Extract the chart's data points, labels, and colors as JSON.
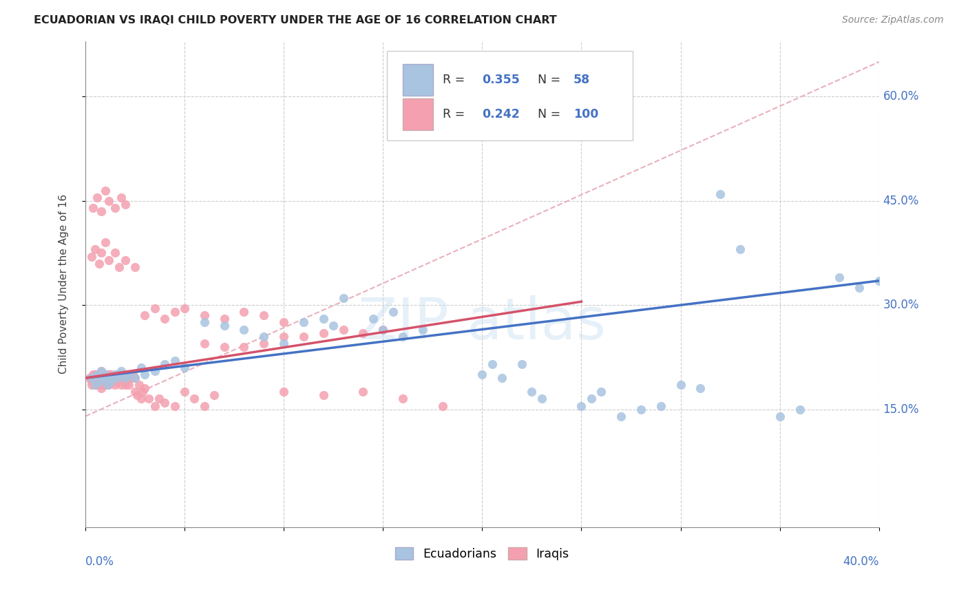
{
  "title": "ECUADORIAN VS IRAQI CHILD POVERTY UNDER THE AGE OF 16 CORRELATION CHART",
  "source": "Source: ZipAtlas.com",
  "ylabel": "Child Poverty Under the Age of 16",
  "yticks": [
    "15.0%",
    "30.0%",
    "45.0%",
    "60.0%"
  ],
  "ytick_vals": [
    0.15,
    0.3,
    0.45,
    0.6
  ],
  "xlim": [
    0.0,
    0.4
  ],
  "ylim": [
    -0.02,
    0.68
  ],
  "ecu_color": "#a8c4e0",
  "irq_color": "#f4a0b0",
  "ecu_line_color": "#4472c4",
  "irq_line_color": "#d4526a",
  "ecu_scatter": [
    [
      0.003,
      0.195
    ],
    [
      0.005,
      0.185
    ],
    [
      0.006,
      0.2
    ],
    [
      0.007,
      0.19
    ],
    [
      0.008,
      0.205
    ],
    [
      0.009,
      0.195
    ],
    [
      0.01,
      0.2
    ],
    [
      0.011,
      0.185
    ],
    [
      0.012,
      0.195
    ],
    [
      0.013,
      0.19
    ],
    [
      0.015,
      0.2
    ],
    [
      0.016,
      0.195
    ],
    [
      0.017,
      0.2
    ],
    [
      0.018,
      0.205
    ],
    [
      0.02,
      0.195
    ],
    [
      0.022,
      0.2
    ],
    [
      0.025,
      0.195
    ],
    [
      0.028,
      0.21
    ],
    [
      0.03,
      0.2
    ],
    [
      0.035,
      0.205
    ],
    [
      0.04,
      0.215
    ],
    [
      0.045,
      0.22
    ],
    [
      0.05,
      0.21
    ],
    [
      0.06,
      0.275
    ],
    [
      0.07,
      0.27
    ],
    [
      0.08,
      0.265
    ],
    [
      0.09,
      0.255
    ],
    [
      0.1,
      0.245
    ],
    [
      0.11,
      0.275
    ],
    [
      0.12,
      0.28
    ],
    [
      0.125,
      0.27
    ],
    [
      0.13,
      0.31
    ],
    [
      0.145,
      0.28
    ],
    [
      0.15,
      0.265
    ],
    [
      0.155,
      0.29
    ],
    [
      0.16,
      0.255
    ],
    [
      0.17,
      0.265
    ],
    [
      0.2,
      0.2
    ],
    [
      0.205,
      0.215
    ],
    [
      0.21,
      0.195
    ],
    [
      0.22,
      0.215
    ],
    [
      0.225,
      0.175
    ],
    [
      0.23,
      0.165
    ],
    [
      0.25,
      0.155
    ],
    [
      0.255,
      0.165
    ],
    [
      0.26,
      0.175
    ],
    [
      0.27,
      0.14
    ],
    [
      0.28,
      0.15
    ],
    [
      0.29,
      0.155
    ],
    [
      0.3,
      0.185
    ],
    [
      0.31,
      0.18
    ],
    [
      0.32,
      0.46
    ],
    [
      0.33,
      0.38
    ],
    [
      0.35,
      0.14
    ],
    [
      0.36,
      0.15
    ],
    [
      0.38,
      0.34
    ],
    [
      0.39,
      0.325
    ],
    [
      0.4,
      0.335
    ]
  ],
  "irq_scatter": [
    [
      0.002,
      0.195
    ],
    [
      0.003,
      0.19
    ],
    [
      0.003,
      0.185
    ],
    [
      0.004,
      0.195
    ],
    [
      0.004,
      0.2
    ],
    [
      0.005,
      0.195
    ],
    [
      0.005,
      0.19
    ],
    [
      0.005,
      0.185
    ],
    [
      0.005,
      0.2
    ],
    [
      0.006,
      0.195
    ],
    [
      0.006,
      0.19
    ],
    [
      0.006,
      0.185
    ],
    [
      0.006,
      0.2
    ],
    [
      0.007,
      0.195
    ],
    [
      0.007,
      0.19
    ],
    [
      0.007,
      0.185
    ],
    [
      0.007,
      0.2
    ],
    [
      0.008,
      0.195
    ],
    [
      0.008,
      0.205
    ],
    [
      0.008,
      0.18
    ],
    [
      0.009,
      0.19
    ],
    [
      0.009,
      0.195
    ],
    [
      0.009,
      0.185
    ],
    [
      0.01,
      0.2
    ],
    [
      0.01,
      0.195
    ],
    [
      0.01,
      0.185
    ],
    [
      0.011,
      0.19
    ],
    [
      0.011,
      0.195
    ],
    [
      0.012,
      0.2
    ],
    [
      0.012,
      0.185
    ],
    [
      0.013,
      0.195
    ],
    [
      0.013,
      0.2
    ],
    [
      0.014,
      0.195
    ],
    [
      0.014,
      0.19
    ],
    [
      0.015,
      0.195
    ],
    [
      0.015,
      0.185
    ],
    [
      0.016,
      0.2
    ],
    [
      0.016,
      0.19
    ],
    [
      0.017,
      0.195
    ],
    [
      0.018,
      0.2
    ],
    [
      0.018,
      0.185
    ],
    [
      0.019,
      0.195
    ],
    [
      0.02,
      0.2
    ],
    [
      0.02,
      0.185
    ],
    [
      0.021,
      0.195
    ],
    [
      0.022,
      0.2
    ],
    [
      0.022,
      0.185
    ],
    [
      0.023,
      0.195
    ],
    [
      0.024,
      0.2
    ],
    [
      0.025,
      0.195
    ],
    [
      0.025,
      0.175
    ],
    [
      0.026,
      0.17
    ],
    [
      0.027,
      0.185
    ],
    [
      0.028,
      0.165
    ],
    [
      0.029,
      0.175
    ],
    [
      0.03,
      0.18
    ],
    [
      0.032,
      0.165
    ],
    [
      0.035,
      0.155
    ],
    [
      0.037,
      0.165
    ],
    [
      0.04,
      0.16
    ],
    [
      0.045,
      0.155
    ],
    [
      0.05,
      0.175
    ],
    [
      0.055,
      0.165
    ],
    [
      0.06,
      0.155
    ],
    [
      0.065,
      0.17
    ],
    [
      0.003,
      0.37
    ],
    [
      0.005,
      0.38
    ],
    [
      0.007,
      0.36
    ],
    [
      0.008,
      0.375
    ],
    [
      0.01,
      0.39
    ],
    [
      0.012,
      0.365
    ],
    [
      0.015,
      0.375
    ],
    [
      0.017,
      0.355
    ],
    [
      0.02,
      0.365
    ],
    [
      0.025,
      0.355
    ],
    [
      0.004,
      0.44
    ],
    [
      0.006,
      0.455
    ],
    [
      0.008,
      0.435
    ],
    [
      0.01,
      0.465
    ],
    [
      0.012,
      0.45
    ],
    [
      0.015,
      0.44
    ],
    [
      0.018,
      0.455
    ],
    [
      0.02,
      0.445
    ],
    [
      0.03,
      0.285
    ],
    [
      0.035,
      0.295
    ],
    [
      0.04,
      0.28
    ],
    [
      0.045,
      0.29
    ],
    [
      0.05,
      0.295
    ],
    [
      0.06,
      0.285
    ],
    [
      0.07,
      0.28
    ],
    [
      0.08,
      0.29
    ],
    [
      0.09,
      0.285
    ],
    [
      0.1,
      0.275
    ],
    [
      0.06,
      0.245
    ],
    [
      0.08,
      0.24
    ],
    [
      0.1,
      0.255
    ],
    [
      0.07,
      0.24
    ],
    [
      0.09,
      0.245
    ],
    [
      0.11,
      0.255
    ],
    [
      0.12,
      0.26
    ],
    [
      0.13,
      0.265
    ],
    [
      0.14,
      0.26
    ],
    [
      0.15,
      0.265
    ],
    [
      0.1,
      0.175
    ],
    [
      0.12,
      0.17
    ],
    [
      0.14,
      0.175
    ],
    [
      0.16,
      0.165
    ],
    [
      0.18,
      0.155
    ]
  ]
}
